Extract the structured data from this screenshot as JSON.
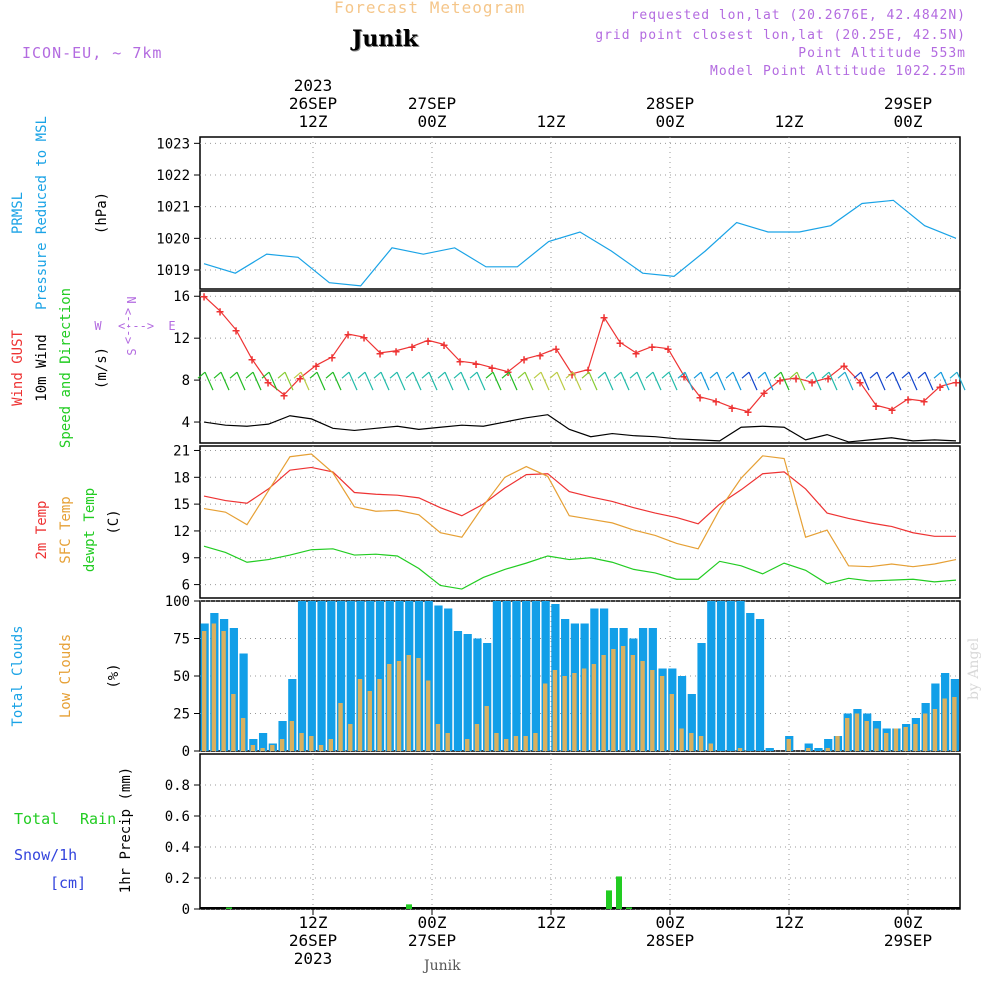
{
  "header": {
    "title": "Forecast Meteogram",
    "location": "Junik",
    "model": "ICON-EU, ~ 7km",
    "requested": "requested lon,lat (20.2676E, 42.4842N)",
    "gridpoint": "grid point closest lon,lat (20.25E, 42.5N)",
    "altitude": "Point Altitude 553m",
    "model_altitude": "Model Point Altitude 1022.25m",
    "footer_location": "Junik",
    "signature": "by Angel"
  },
  "time_axis": {
    "top": [
      {
        "label": "12Z",
        "date": "26SEP",
        "year": "2023"
      },
      {
        "label": "00Z",
        "date": "27SEP",
        "year": ""
      },
      {
        "label": "12Z",
        "date": "",
        "year": ""
      },
      {
        "label": "00Z",
        "date": "28SEP",
        "year": ""
      },
      {
        "label": "12Z",
        "date": "",
        "year": ""
      },
      {
        "label": "00Z",
        "date": "29SEP",
        "year": ""
      }
    ]
  },
  "panel_labels": {
    "prmsl": [
      "PRMSL",
      "Pressure Reduced to MSL"
    ],
    "prmsl_unit": "(hPa)",
    "wind_gust": "Wind GUST",
    "wind_10m": "10m Wind",
    "wind_dir": "Speed and Direction",
    "wind_unit": "(m/s)",
    "compass": {
      "n": "N",
      "s": "S",
      "w": "W",
      "e": "E",
      "arrows": "<--->"
    },
    "temp_2m": "2m Temp",
    "temp_sfc": "SFC Temp",
    "temp_dew": "dewpt Temp",
    "temp_unit": "(C)",
    "cloud_total": "Total Clouds",
    "cloud_low": "Low Clouds",
    "cloud_unit": "(%)",
    "precip_total": "Total",
    "precip_rain": "Rain",
    "precip_snow": "Snow/1h",
    "precip_cm": "[cm]",
    "precip_unit": "1hr Precip (mm)"
  },
  "colors": {
    "pressure": "#1aa3e6",
    "gust": "#ee3333",
    "wind": "#000000",
    "temp2m": "#ee3333",
    "sfc": "#e6a035",
    "dew": "#22cc22",
    "total_cloud": "#129fe8",
    "low_cloud": "#d8b060",
    "rain": "#22cc22",
    "snow": "#3344dd",
    "model_label": "#b36be0"
  },
  "chart_data": [
    {
      "type": "line",
      "name": "prmsl",
      "x_hours": [
        0,
        3,
        6,
        9,
        12,
        15,
        18,
        21,
        24,
        27,
        30,
        33,
        36,
        39,
        42,
        45,
        48,
        51,
        54,
        57,
        60,
        63,
        66,
        69,
        72
      ],
      "ylim": [
        1018.4,
        1023.2
      ],
      "yticks": [
        1019,
        1020,
        1021,
        1022,
        1023
      ],
      "series": [
        {
          "values": [
            1019.2,
            1018.9,
            1019.5,
            1019.4,
            1018.6,
            1018.5,
            1019.7,
            1019.5,
            1019.7,
            1019.1,
            1019.1,
            1019.9,
            1020.2,
            1019.6,
            1018.9,
            1018.8,
            1019.6,
            1020.5,
            1020.2,
            1020.2,
            1020.4,
            1021.1,
            1021.2,
            1020.4,
            1020.0
          ]
        }
      ]
    },
    {
      "type": "line",
      "name": "wind",
      "ylim": [
        2,
        16.5
      ],
      "yticks": [
        4,
        8,
        12,
        16
      ],
      "series": [
        {
          "name": "gust",
          "values": [
            16.0,
            14.6,
            12.8,
            10.0,
            7.8,
            6.6,
            8.2,
            9.4,
            10.2,
            12.4,
            12.1,
            10.6,
            10.8,
            11.2,
            11.8,
            11.4,
            9.8,
            9.6,
            9.2,
            8.8,
            10.0,
            10.4,
            11.0,
            8.6,
            9.0,
            14.0,
            11.6,
            10.6,
            11.2,
            11.0,
            8.4,
            6.4,
            6.0,
            5.4,
            5.0,
            6.8,
            8.0,
            8.2,
            7.8,
            8.2,
            9.4,
            7.8,
            5.6,
            5.2,
            6.2,
            6.0,
            7.4,
            7.8
          ]
        },
        {
          "name": "wind10m",
          "values": [
            4.0,
            3.7,
            3.6,
            3.8,
            4.6,
            4.3,
            3.4,
            3.2,
            3.4,
            3.6,
            3.3,
            3.5,
            3.7,
            3.6,
            4.0,
            4.4,
            4.7,
            3.3,
            2.6,
            2.9,
            2.7,
            2.6,
            2.4,
            2.3,
            2.2,
            3.5,
            3.6,
            3.5,
            2.3,
            2.8,
            2.1,
            2.3,
            2.5,
            2.2,
            2.3,
            2.2
          ]
        }
      ],
      "barbs": {
        "y_level": 7.9,
        "colors": [
          "#22bb22",
          "#22bb22",
          "#22bb22",
          "#22bb22",
          "#22bb22",
          "#88cc33",
          "#bbcc44",
          "#22bb22",
          "#22bb22",
          "#22bbaa",
          "#22bbaa",
          "#22bbaa",
          "#22bbaa",
          "#22bbaa",
          "#22bbaa",
          "#22bbaa",
          "#22bbaa",
          "#22bbaa",
          "#22bb22",
          "#22bb22",
          "#88cc33",
          "#bbcc44",
          "#bbcc44",
          "#bbcc44",
          "#88cc33",
          "#22bbaa",
          "#22bbaa",
          "#22bbaa",
          "#22bbaa",
          "#22bbaa",
          "#22aacc",
          "#1199dd",
          "#1199dd",
          "#1199dd",
          "#1144cc",
          "#1199dd",
          "#22bb22",
          "#88cc33",
          "#22bbaa",
          "#22bbaa",
          "#22aacc",
          "#1144cc",
          "#1144cc",
          "#1144cc",
          "#1144cc",
          "#1144cc",
          "#1199dd",
          "#22aacc"
        ]
      }
    },
    {
      "type": "line",
      "name": "temperature",
      "ylim": [
        4.5,
        21.5
      ],
      "yticks": [
        6,
        9,
        12,
        15,
        18,
        21
      ],
      "series": [
        {
          "name": "temp2m",
          "values": [
            15.9,
            15.4,
            15.1,
            16.7,
            18.8,
            19.1,
            18.6,
            16.3,
            16.1,
            16.0,
            15.7,
            14.6,
            13.7,
            15.0,
            16.8,
            18.3,
            18.4,
            16.4,
            15.8,
            15.3,
            14.6,
            14.0,
            13.5,
            12.8,
            15.0,
            16.6,
            18.4,
            18.6,
            16.7,
            14.0,
            13.4,
            12.9,
            12.5,
            11.8,
            11.4,
            11.4
          ]
        },
        {
          "name": "sfc",
          "values": [
            14.5,
            14.1,
            12.7,
            16.5,
            20.3,
            20.6,
            18.5,
            14.7,
            14.2,
            14.3,
            13.8,
            11.8,
            11.3,
            14.8,
            18.0,
            19.2,
            18.1,
            13.7,
            13.3,
            12.9,
            12.1,
            11.5,
            10.6,
            10.0,
            14.4,
            17.9,
            20.4,
            20.1,
            11.3,
            12.1,
            8.1,
            8.0,
            8.3,
            8.0,
            8.3,
            8.8
          ]
        },
        {
          "name": "dew",
          "values": [
            10.3,
            9.6,
            8.5,
            8.8,
            9.3,
            9.9,
            10.0,
            9.3,
            9.4,
            9.2,
            7.8,
            5.9,
            5.5,
            6.8,
            7.7,
            8.4,
            9.2,
            8.8,
            9.0,
            8.5,
            7.7,
            7.3,
            6.6,
            6.6,
            8.6,
            8.1,
            7.2,
            8.4,
            7.6,
            6.1,
            6.7,
            6.4,
            6.5,
            6.6,
            6.3,
            6.5
          ]
        }
      ]
    },
    {
      "type": "bar",
      "name": "clouds",
      "ylim": [
        0,
        100
      ],
      "yticks": [
        0,
        25,
        50,
        75,
        100
      ],
      "series": [
        {
          "name": "total",
          "values": [
            85,
            92,
            88,
            82,
            65,
            8,
            12,
            5,
            20,
            48,
            100,
            100,
            100,
            100,
            100,
            100,
            100,
            100,
            100,
            100,
            100,
            100,
            100,
            100,
            97,
            95,
            80,
            78,
            75,
            72,
            100,
            100,
            100,
            100,
            100,
            100,
            98,
            88,
            85,
            85,
            95,
            95,
            82,
            82,
            75,
            82,
            82,
            55,
            55,
            50,
            38,
            72,
            100,
            100,
            100,
            100,
            92,
            88,
            2,
            0,
            10,
            0,
            5,
            2,
            8,
            10,
            25,
            28,
            25,
            20,
            15,
            15,
            18,
            22,
            32,
            45,
            52,
            48
          ]
        },
        {
          "name": "low",
          "values": [
            80,
            85,
            80,
            38,
            22,
            4,
            2,
            4,
            8,
            20,
            12,
            10,
            4,
            8,
            32,
            18,
            48,
            40,
            48,
            58,
            60,
            64,
            62,
            47,
            18,
            12,
            0,
            8,
            18,
            30,
            12,
            8,
            10,
            10,
            12,
            45,
            54,
            50,
            52,
            55,
            58,
            64,
            68,
            70,
            64,
            60,
            54,
            50,
            38,
            15,
            12,
            10,
            5,
            0,
            0,
            2,
            0,
            0,
            0,
            0,
            8,
            0,
            2,
            0,
            2,
            10,
            22,
            25,
            20,
            15,
            12,
            15,
            16,
            18,
            25,
            28,
            35,
            36
          ]
        }
      ]
    },
    {
      "type": "bar",
      "name": "precip",
      "ylim": [
        0,
        1.0
      ],
      "yticks": [
        0,
        0.2,
        0.4,
        0.6,
        0.8
      ],
      "series": [
        {
          "name": "rain",
          "values": [
            0.01,
            0.03,
            0.12,
            0.21,
            0.01
          ]
        },
        {
          "name": "rain_hours",
          "values": [
            2,
            20,
            40,
            41,
            42
          ]
        }
      ]
    }
  ]
}
